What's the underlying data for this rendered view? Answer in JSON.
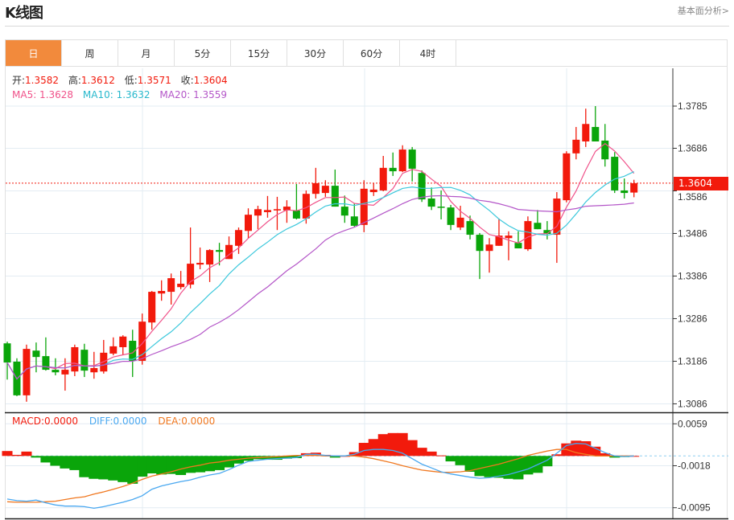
{
  "header": {
    "title": "K线图",
    "link": "基本面分析>"
  },
  "tabs": [
    {
      "label": "日",
      "active": true
    },
    {
      "label": "周"
    },
    {
      "label": "月"
    },
    {
      "label": "5分"
    },
    {
      "label": "15分"
    },
    {
      "label": "30分"
    },
    {
      "label": "60分"
    },
    {
      "label": "4时"
    }
  ],
  "ohlc_info": {
    "open_label": "开:",
    "open": "1.3582",
    "high_label": "高:",
    "high": "1.3612",
    "low_label": "低:",
    "low": "1.3571",
    "close_label": "收:",
    "close": "1.3604"
  },
  "ma_info": {
    "ma5": "MA5: 1.3628",
    "ma10": "MA10: 1.3632",
    "ma20": "MA20: 1.3559"
  },
  "macd_info": {
    "macd": "MACD:0.0000",
    "diff": "DIFF:0.0000",
    "dea": "DEA:0.0000"
  },
  "current_price": "1.3604",
  "colors": {
    "up": "#f21a0c",
    "down": "#0aa50a",
    "ma5": "#f0528a",
    "ma10": "#3cc8dc",
    "ma20": "#b456c8",
    "diff": "#4aa8f0",
    "dea": "#f07820",
    "accent": "#f28a3c"
  },
  "chart_data": [
    {
      "type": "candlestick",
      "title": "K线图",
      "ylim": [
        1.306,
        1.3875
      ],
      "yticks": [
        "1.3785",
        "1.3686",
        "1.3586",
        "1.3486",
        "1.3386",
        "1.3286",
        "1.3186",
        "1.3086"
      ],
      "grid": true,
      "ohlc": [
        [
          1.3228,
          1.3232,
          1.3143,
          1.3183
        ],
        [
          1.3185,
          1.3193,
          1.3104,
          1.3106
        ],
        [
          1.3106,
          1.3225,
          1.3091,
          1.3215
        ],
        [
          1.3211,
          1.323,
          1.316,
          1.3196
        ],
        [
          1.3198,
          1.3242,
          1.3164,
          1.3166
        ],
        [
          1.3166,
          1.3193,
          1.3153,
          1.316
        ],
        [
          1.3155,
          1.3193,
          1.3117,
          1.3166
        ],
        [
          1.3162,
          1.3225,
          1.3151,
          1.3219
        ],
        [
          1.3213,
          1.3227,
          1.3149,
          1.3164
        ],
        [
          1.316,
          1.3208,
          1.3145,
          1.317
        ],
        [
          1.3162,
          1.3236,
          1.3157,
          1.3206
        ],
        [
          1.3204,
          1.3242,
          1.32,
          1.3221
        ],
        [
          1.3219,
          1.3247,
          1.32,
          1.3244
        ],
        [
          1.3234,
          1.326,
          1.3149,
          1.3187
        ],
        [
          1.3187,
          1.3298,
          1.3178,
          1.3279
        ],
        [
          1.3277,
          1.3351,
          1.326,
          1.3349
        ],
        [
          1.3345,
          1.3376,
          1.3328,
          1.3351
        ],
        [
          1.3349,
          1.3392,
          1.3319,
          1.3381
        ],
        [
          1.336,
          1.3398,
          1.3355,
          1.3368
        ],
        [
          1.3366,
          1.35,
          1.3357,
          1.3415
        ],
        [
          1.3413,
          1.3453,
          1.3402,
          1.3417
        ],
        [
          1.3413,
          1.3449,
          1.3372,
          1.3447
        ],
        [
          1.3447,
          1.3464,
          1.3411,
          1.3443
        ],
        [
          1.3426,
          1.3479,
          1.3426,
          1.3459
        ],
        [
          1.3457,
          1.35,
          1.3438,
          1.3494
        ],
        [
          1.3492,
          1.3545,
          1.3475,
          1.353
        ],
        [
          1.3528,
          1.3551,
          1.3496,
          1.3543
        ],
        [
          1.3536,
          1.3574,
          1.3523,
          1.3541
        ],
        [
          1.354,
          1.3572,
          1.3494,
          1.3543
        ],
        [
          1.354,
          1.3564,
          1.3511,
          1.3549
        ],
        [
          1.354,
          1.3602,
          1.3519,
          1.3521
        ],
        [
          1.3521,
          1.3587,
          1.3509,
          1.3579
        ],
        [
          1.3579,
          1.364,
          1.3568,
          1.3604
        ],
        [
          1.3581,
          1.3611,
          1.3572,
          1.3598
        ],
        [
          1.3598,
          1.3636,
          1.3549,
          1.3549
        ],
        [
          1.3549,
          1.3575,
          1.3511,
          1.3528
        ],
        [
          1.3526,
          1.3557,
          1.3502,
          1.3504
        ],
        [
          1.3506,
          1.3611,
          1.3489,
          1.3591
        ],
        [
          1.3583,
          1.3604,
          1.3574,
          1.3589
        ],
        [
          1.3587,
          1.3668,
          1.3585,
          1.364
        ],
        [
          1.364,
          1.3676,
          1.3621,
          1.3632
        ],
        [
          1.3632,
          1.3693,
          1.363,
          1.3683
        ],
        [
          1.3683,
          1.3689,
          1.3608,
          1.3638
        ],
        [
          1.3628,
          1.3634,
          1.356,
          1.3566
        ],
        [
          1.3568,
          1.3594,
          1.3541,
          1.3549
        ],
        [
          1.3549,
          1.3587,
          1.3519,
          1.3547
        ],
        [
          1.3547,
          1.3553,
          1.3494,
          1.3506
        ],
        [
          1.35,
          1.3551,
          1.3494,
          1.3523
        ],
        [
          1.3515,
          1.3528,
          1.3472,
          1.3483
        ],
        [
          1.3483,
          1.3487,
          1.3379,
          1.3445
        ],
        [
          1.3445,
          1.3475,
          1.3394,
          1.346
        ],
        [
          1.3457,
          1.3521,
          1.3457,
          1.3481
        ],
        [
          1.3475,
          1.3491,
          1.3423,
          1.3481
        ],
        [
          1.3464,
          1.3491,
          1.3451,
          1.3451
        ],
        [
          1.3449,
          1.3526,
          1.3445,
          1.3515
        ],
        [
          1.3511,
          1.3541,
          1.3496,
          1.3496
        ],
        [
          1.3494,
          1.3515,
          1.3472,
          1.3485
        ],
        [
          1.3483,
          1.3583,
          1.3417,
          1.3568
        ],
        [
          1.3564,
          1.3679,
          1.3559,
          1.3674
        ],
        [
          1.3674,
          1.3736,
          1.366,
          1.3706
        ],
        [
          1.3702,
          1.3779,
          1.3689,
          1.3743
        ],
        [
          1.3736,
          1.3785,
          1.3702,
          1.3702
        ],
        [
          1.3704,
          1.3743,
          1.3643,
          1.366
        ],
        [
          1.3666,
          1.3677,
          1.3581,
          1.3587
        ],
        [
          1.3587,
          1.3615,
          1.3568,
          1.3581
        ],
        [
          1.3582,
          1.3612,
          1.3571,
          1.3604
        ]
      ],
      "ma_periods": [
        5,
        10,
        20
      ]
    },
    {
      "type": "bar+line",
      "title": "MACD",
      "ylim": [
        -0.011,
        0.007
      ],
      "yticks": [
        "0.0059",
        "-0.0018",
        "-0.0095"
      ],
      "macd": [
        0.0009,
        0.0002,
        0.0008,
        -0.0003,
        -0.0012,
        -0.0018,
        -0.0023,
        -0.0026,
        -0.0039,
        -0.0042,
        -0.0043,
        -0.0045,
        -0.0048,
        -0.0051,
        -0.0038,
        -0.0032,
        -0.0034,
        -0.0033,
        -0.0035,
        -0.0031,
        -0.003,
        -0.0028,
        -0.0026,
        -0.0021,
        -0.0014,
        -0.0009,
        -0.0006,
        -0.0007,
        -0.0007,
        -0.0005,
        -0.0004,
        0.0005,
        0.0006,
        0.0002,
        -0.0003,
        0.0,
        0.0007,
        0.0024,
        0.0031,
        0.004,
        0.0042,
        0.0042,
        0.0029,
        0.0015,
        0.0008,
        0.0001,
        -0.001,
        -0.0017,
        -0.0029,
        -0.0037,
        -0.0039,
        -0.004,
        -0.0042,
        -0.0043,
        -0.0034,
        -0.0031,
        -0.0019,
        0.0003,
        0.0023,
        0.0028,
        0.0027,
        0.0017,
        0.0005,
        -0.0003,
        -0.0002,
        0.0
      ],
      "diff": [
        -0.0079,
        -0.0082,
        -0.0083,
        -0.0081,
        -0.0086,
        -0.009,
        -0.0092,
        -0.0092,
        -0.0093,
        -0.0096,
        -0.0093,
        -0.0089,
        -0.0085,
        -0.008,
        -0.0073,
        -0.0061,
        -0.0055,
        -0.0051,
        -0.0047,
        -0.0044,
        -0.0039,
        -0.0035,
        -0.0032,
        -0.0025,
        -0.0017,
        -0.001,
        -0.0008,
        -0.0006,
        -0.0005,
        -0.0004,
        -0.0003,
        0.0003,
        0.0003,
        0.0001,
        0.0,
        0.0,
        0.0003,
        0.001,
        0.0012,
        0.0012,
        0.001,
        0.0005,
        -0.0005,
        -0.0015,
        -0.0022,
        -0.0029,
        -0.0033,
        -0.0036,
        -0.0039,
        -0.0041,
        -0.004,
        -0.0037,
        -0.0034,
        -0.0029,
        -0.0024,
        -0.0016,
        -0.0008,
        0.0005,
        0.0019,
        0.0023,
        0.0022,
        0.0014,
        0.0006,
        0.0,
        -0.0001,
        0.0
      ],
      "dea": [
        -0.0084,
        -0.0085,
        -0.0085,
        -0.0085,
        -0.0084,
        -0.0083,
        -0.008,
        -0.0077,
        -0.0075,
        -0.007,
        -0.0066,
        -0.0061,
        -0.0056,
        -0.005,
        -0.0043,
        -0.0037,
        -0.0033,
        -0.0029,
        -0.0024,
        -0.002,
        -0.0017,
        -0.0013,
        -0.0011,
        -0.0008,
        -0.0006,
        -0.0004,
        -0.0003,
        -0.0002,
        -0.0001,
        0.0,
        0.0001,
        0.0001,
        0.0001,
        0.0,
        0.0,
        0.0,
        0.0,
        -0.0002,
        -0.0005,
        -0.0009,
        -0.0013,
        -0.0018,
        -0.0022,
        -0.0026,
        -0.0028,
        -0.003,
        -0.003,
        -0.0029,
        -0.0027,
        -0.0023,
        -0.0019,
        -0.0015,
        -0.001,
        -0.0005,
        0.0001,
        0.0005,
        0.0009,
        0.0012,
        0.0012,
        0.0006,
        0.0003,
        0.0,
        0.0,
        0.0,
        0.0,
        0.0
      ]
    }
  ]
}
